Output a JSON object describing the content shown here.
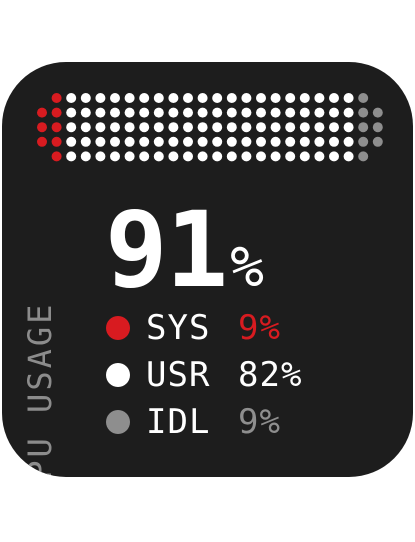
{
  "widget": {
    "title": "CPU USAGE",
    "total_value": "91",
    "total_unit": "%",
    "meter": {
      "sys_fraction": 0.09,
      "usr_fraction": 0.82,
      "idle_fraction": 0.09
    },
    "legend": [
      {
        "name": "SYS",
        "value": "9%",
        "color": "#d81b20"
      },
      {
        "name": "USR",
        "value": "82%",
        "color": "#ffffff"
      },
      {
        "name": "IDL",
        "value": "9%",
        "color": "#8e8e8e"
      }
    ]
  }
}
